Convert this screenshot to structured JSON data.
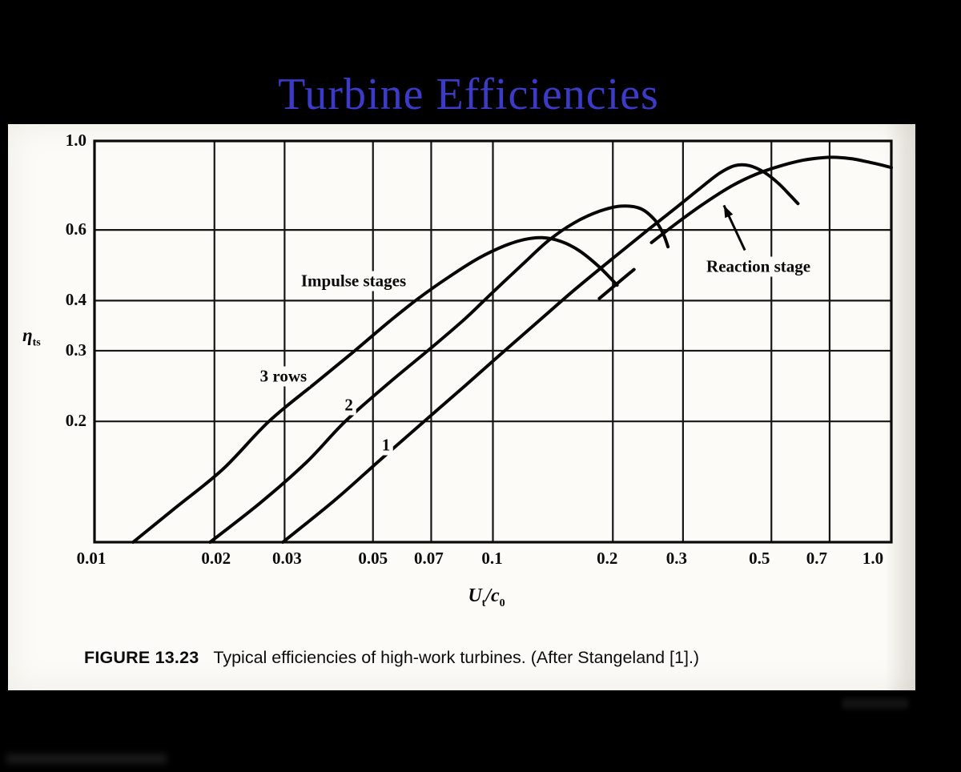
{
  "slide": {
    "title": "Turbine Efficiencies"
  },
  "colors": {
    "background": "#000000",
    "title": "#3b3bc8",
    "paper": "#fcfbf7",
    "ink": "#0a0a0a"
  },
  "chart_data": {
    "type": "line",
    "title": "",
    "x_axis": {
      "label_numerator": "U",
      "label_numerator_sub": "t",
      "label_slash": "/",
      "label_denominator": "c",
      "label_denominator_sub": "0",
      "scale": "log",
      "range": [
        0.01,
        1.0
      ],
      "ticks": [
        0.01,
        0.02,
        0.03,
        0.05,
        0.07,
        0.1,
        0.2,
        0.3,
        0.5,
        0.7,
        1.0
      ],
      "tick_labels": [
        "0.01",
        "0.02",
        "0.03",
        "0.05",
        "0.07",
        "0.1",
        "0.2",
        "0.3",
        "0.5",
        "0.7",
        "1.0"
      ]
    },
    "y_axis": {
      "label": "η",
      "label_sub": "ts",
      "scale": "log",
      "range": [
        0.1,
        1.0
      ],
      "ticks": [
        1.0,
        0.6,
        0.4,
        0.3,
        0.2
      ],
      "tick_labels": [
        "1.0",
        "0.6",
        "0.4",
        "0.3",
        "0.2"
      ]
    },
    "grid": "both",
    "series": [
      {
        "name": "Impulse stages - 3 rows",
        "points": [
          [
            0.0125,
            0.1
          ],
          [
            0.016,
            0.122
          ],
          [
            0.021,
            0.152
          ],
          [
            0.0274,
            0.2
          ],
          [
            0.036,
            0.25
          ],
          [
            0.045,
            0.3
          ],
          [
            0.055,
            0.355
          ],
          [
            0.065,
            0.405
          ],
          [
            0.078,
            0.46
          ],
          [
            0.092,
            0.51
          ],
          [
            0.107,
            0.548
          ],
          [
            0.12,
            0.568
          ],
          [
            0.133,
            0.574
          ],
          [
            0.148,
            0.562
          ],
          [
            0.165,
            0.532
          ],
          [
            0.185,
            0.485
          ],
          [
            0.205,
            0.437
          ]
        ]
      },
      {
        "name": "Impulse stages - 2 rows",
        "points": [
          [
            0.0195,
            0.1
          ],
          [
            0.026,
            0.125
          ],
          [
            0.034,
            0.158
          ],
          [
            0.0426,
            0.2
          ],
          [
            0.055,
            0.25
          ],
          [
            0.07,
            0.305
          ],
          [
            0.085,
            0.36
          ],
          [
            0.1,
            0.42
          ],
          [
            0.118,
            0.49
          ],
          [
            0.138,
            0.565
          ],
          [
            0.16,
            0.625
          ],
          [
            0.185,
            0.668
          ],
          [
            0.21,
            0.688
          ],
          [
            0.235,
            0.678
          ],
          [
            0.255,
            0.635
          ],
          [
            0.268,
            0.585
          ],
          [
            0.275,
            0.545
          ]
        ]
      },
      {
        "name": "Impulse stages - 1 row",
        "points": [
          [
            0.0297,
            0.1
          ],
          [
            0.04,
            0.127
          ],
          [
            0.052,
            0.16
          ],
          [
            0.0672,
            0.2
          ],
          [
            0.085,
            0.245
          ],
          [
            0.105,
            0.295
          ],
          [
            0.13,
            0.355
          ],
          [
            0.16,
            0.425
          ],
          [
            0.2,
            0.51
          ],
          [
            0.245,
            0.6
          ],
          [
            0.29,
            0.685
          ],
          [
            0.33,
            0.76
          ],
          [
            0.37,
            0.83
          ],
          [
            0.405,
            0.868
          ],
          [
            0.44,
            0.868
          ],
          [
            0.48,
            0.835
          ],
          [
            0.52,
            0.785
          ],
          [
            0.555,
            0.735
          ],
          [
            0.583,
            0.698
          ]
        ]
      },
      {
        "name": "Reaction stage",
        "segments": [
          [
            [
              0.185,
              0.405
            ],
            [
              0.21,
              0.45
            ],
            [
              0.226,
              0.478
            ]
          ],
          [
            [
              0.25,
              0.558
            ],
            [
              0.29,
              0.625
            ],
            [
              0.34,
              0.7
            ],
            [
              0.4,
              0.775
            ],
            [
              0.46,
              0.828
            ],
            [
              0.53,
              0.868
            ],
            [
              0.6,
              0.895
            ],
            [
              0.67,
              0.908
            ],
            [
              0.73,
              0.91
            ],
            [
              0.8,
              0.902
            ],
            [
              0.88,
              0.885
            ],
            [
              0.95,
              0.87
            ],
            [
              1.0,
              0.858
            ]
          ]
        ]
      }
    ],
    "annotations": [
      {
        "text": "Impulse stages",
        "x": 0.0447,
        "y": 0.447
      },
      {
        "text": "3 rows",
        "x": 0.0298,
        "y": 0.259
      },
      {
        "text": "2",
        "x": 0.0435,
        "y": 0.219
      },
      {
        "text": "1",
        "x": 0.0539,
        "y": 0.174
      },
      {
        "text": "Reaction stage",
        "x": 0.464,
        "y": 0.487
      }
    ],
    "arrow": {
      "from": [
        0.429,
        0.534
      ],
      "to": [
        0.38,
        0.691
      ]
    }
  },
  "caption": {
    "label": "FIGURE 13.23",
    "text": "Typical efficiencies of high-work turbines. (After Stangeland [1].)"
  }
}
